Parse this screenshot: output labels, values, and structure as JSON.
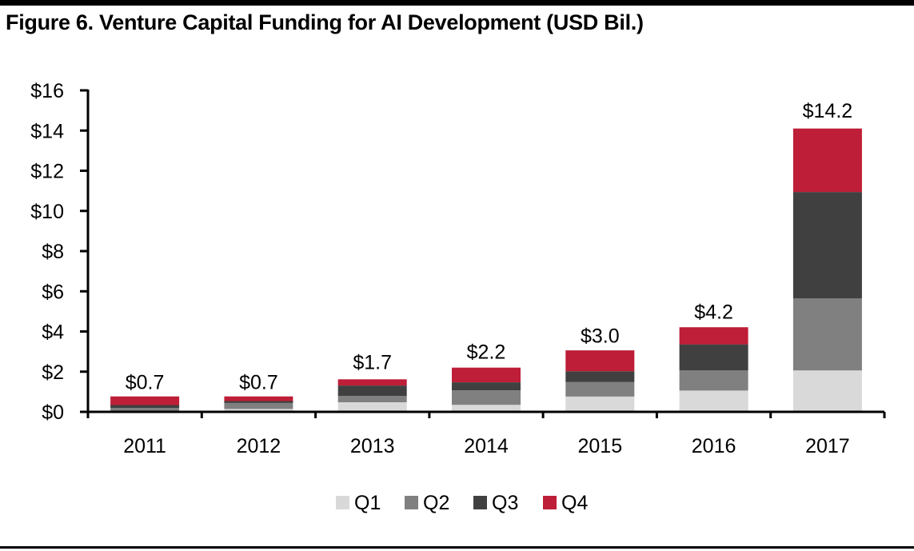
{
  "chart_data": {
    "type": "bar",
    "stacked": true,
    "title": "Figure 6. Venture Capital Funding for AI Development (USD Bil.)",
    "xlabel": "",
    "ylabel": "",
    "ylim": [
      0,
      16
    ],
    "y_ticks": [
      0,
      2,
      4,
      6,
      8,
      10,
      12,
      14,
      16
    ],
    "y_tick_labels": [
      "$0",
      "$2",
      "$4",
      "$6",
      "$8",
      "$10",
      "$12",
      "$14",
      "$16"
    ],
    "grid": false,
    "categories": [
      "2011",
      "2012",
      "2013",
      "2014",
      "2015",
      "2016",
      "2017"
    ],
    "series": [
      {
        "name": "Q1",
        "color": "#d9d9d9",
        "values": [
          0.04,
          0.14,
          0.48,
          0.35,
          0.76,
          1.06,
          2.06
        ]
      },
      {
        "name": "Q2",
        "color": "#808080",
        "values": [
          0.16,
          0.3,
          0.31,
          0.72,
          0.72,
          1.01,
          3.59
        ]
      },
      {
        "name": "Q3",
        "color": "#404040",
        "values": [
          0.14,
          0.1,
          0.52,
          0.4,
          0.54,
          1.29,
          5.29
        ]
      },
      {
        "name": "Q4",
        "color": "#be1e37",
        "values": [
          0.43,
          0.23,
          0.31,
          0.73,
          1.04,
          0.85,
          3.16
        ]
      }
    ],
    "totals": [
      0.7,
      0.7,
      1.7,
      2.2,
      3.0,
      4.2,
      14.2
    ],
    "total_labels": [
      "$0.7",
      "$0.7",
      "$1.7",
      "$2.2",
      "$3.0",
      "$4.2",
      "$14.2"
    ],
    "legend": {
      "position": "bottom",
      "entries": [
        "Q1",
        "Q2",
        "Q3",
        "Q4"
      ]
    }
  }
}
